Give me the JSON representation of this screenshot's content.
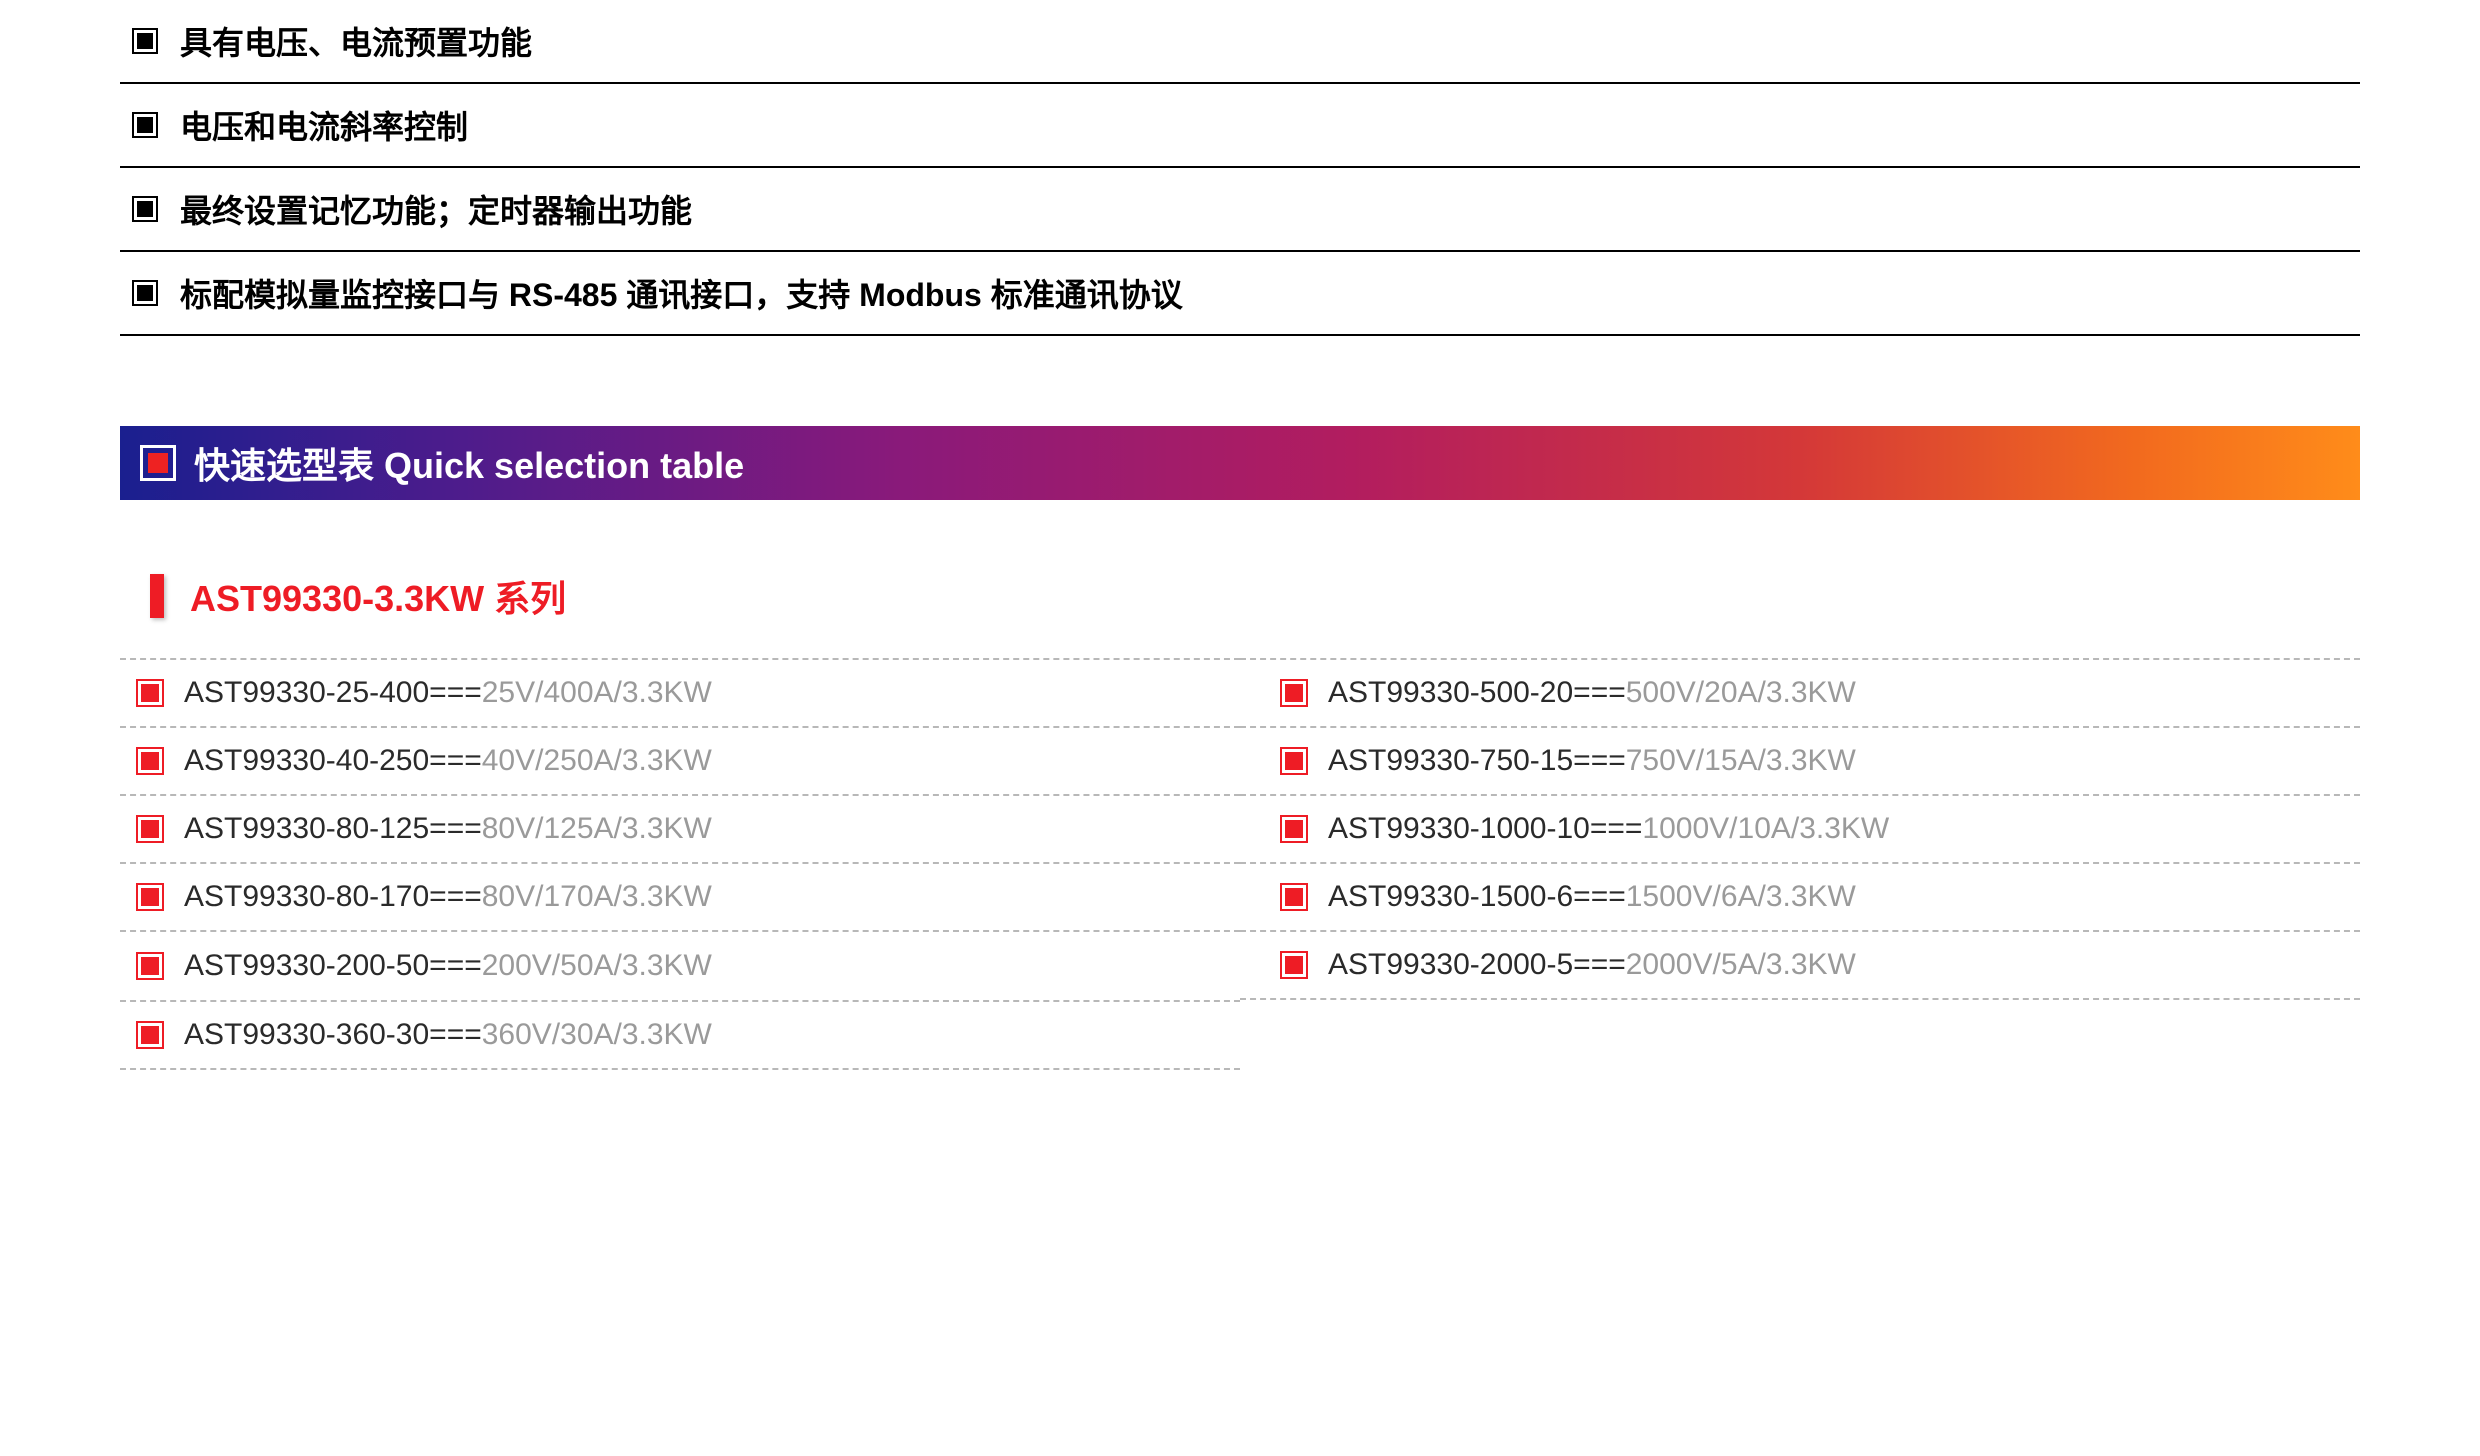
{
  "features": [
    "具有电压、电流预置功能",
    "电压和电流斜率控制",
    "最终设置记忆功能；定时器输出功能",
    "标配模拟量监控接口与 RS-485 通讯接口，支持 Modbus 标准通讯协议"
  ],
  "banner": {
    "title": "快速选型表  Quick selection table",
    "gradient_colors": [
      "#1a1f8f",
      "#4d1c8c",
      "#8a1a7a",
      "#b21d5f",
      "#d43838",
      "#f26a1e",
      "#ff8c1a"
    ],
    "icon_border_color": "#ffffff",
    "icon_fill_color": "#ee2222",
    "text_color": "#ffffff",
    "title_fontsize": 36
  },
  "series": {
    "title": "AST99330-3.3KW 系列",
    "title_color": "#ee1c25",
    "bar_color": "#ee1c25",
    "title_fontsize": 36
  },
  "model_table": {
    "type": "table",
    "columns": 2,
    "border_style": "dashed",
    "border_color": "#b8b8b8",
    "icon_border_color": "#ee1c25",
    "icon_fill_color": "#ee1c25",
    "code_color": "#2a2a2a",
    "spec_color": "#9a9a9a",
    "fontsize": 30,
    "left": [
      {
        "code": "AST99330-25-400===",
        "spec": "25V/400A/3.3KW"
      },
      {
        "code": "AST99330-40-250===",
        "spec": "40V/250A/3.3KW"
      },
      {
        "code": "AST99330-80-125===",
        "spec": "80V/125A/3.3KW"
      },
      {
        "code": "AST99330-80-170===",
        "spec": "80V/170A/3.3KW"
      },
      {
        "code": "AST99330-200-50===",
        "spec": "200V/50A/3.3KW"
      },
      {
        "code": "AST99330-360-30===",
        "spec": "360V/30A/3.3KW"
      }
    ],
    "right": [
      {
        "code": "AST99330-500-20===",
        "spec": "500V/20A/3.3KW"
      },
      {
        "code": "AST99330-750-15===",
        "spec": "750V/15A/3.3KW"
      },
      {
        "code": "AST99330-1000-10===",
        "spec": "1000V/10A/3.3KW"
      },
      {
        "code": "AST99330-1500-6===",
        "spec": "1500V/6A/3.3KW"
      },
      {
        "code": "AST99330-2000-5===",
        "spec": "2000V/5A/3.3KW"
      }
    ]
  },
  "colors": {
    "background": "#ffffff",
    "black": "#000000",
    "red_accent": "#ee1c25"
  }
}
